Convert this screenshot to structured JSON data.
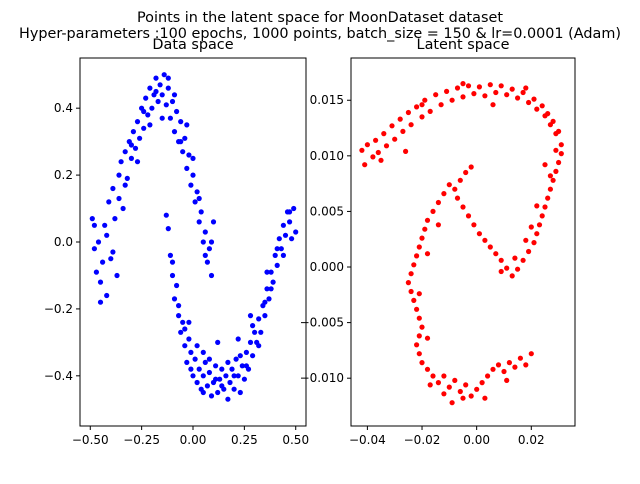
{
  "figure": {
    "title_line1": "Points in the latent space for MoonDataset dataset",
    "title_line2": "Hyper-parameters :100 epochs, 1000 points, batch_size = 150 & lr=0.0001 (Adam)"
  },
  "chart_data": [
    {
      "type": "scatter",
      "title": "Data space",
      "color": "#0000ff",
      "xlim": [
        -0.55,
        0.55
      ],
      "ylim": [
        -0.55,
        0.55
      ],
      "xticks": [
        -0.5,
        -0.25,
        0.0,
        0.25,
        0.5
      ],
      "xtick_labels": [
        "−0.50",
        "−0.25",
        "0.00",
        "0.25",
        "0.50"
      ],
      "yticks": [
        -0.4,
        -0.2,
        0.0,
        0.2,
        0.4
      ],
      "ytick_labels": [
        "−0.4",
        "−0.2",
        "0.0",
        "0.2",
        "0.4"
      ],
      "points": [
        [
          -0.49,
          0.07
        ],
        [
          -0.48,
          -0.02
        ],
        [
          -0.47,
          -0.09
        ],
        [
          -0.46,
          0.0
        ],
        [
          -0.45,
          -0.12
        ],
        [
          -0.44,
          -0.06
        ],
        [
          -0.43,
          0.05
        ],
        [
          -0.42,
          -0.16
        ],
        [
          -0.41,
          0.12
        ],
        [
          -0.4,
          -0.05
        ],
        [
          -0.39,
          0.16
        ],
        [
          -0.38,
          0.07
        ],
        [
          -0.37,
          -0.1
        ],
        [
          -0.36,
          0.2
        ],
        [
          -0.35,
          0.24
        ],
        [
          -0.34,
          0.1
        ],
        [
          -0.33,
          0.27
        ],
        [
          -0.32,
          0.19
        ],
        [
          -0.31,
          0.3
        ],
        [
          -0.3,
          0.25
        ],
        [
          -0.29,
          0.33
        ],
        [
          -0.28,
          0.28
        ],
        [
          -0.27,
          0.36
        ],
        [
          -0.26,
          0.31
        ],
        [
          -0.25,
          0.4
        ],
        [
          -0.24,
          0.34
        ],
        [
          -0.23,
          0.43
        ],
        [
          -0.22,
          0.38
        ],
        [
          -0.21,
          0.46
        ],
        [
          -0.2,
          0.4
        ],
        [
          -0.19,
          0.44
        ],
        [
          -0.18,
          0.49
        ],
        [
          -0.17,
          0.42
        ],
        [
          -0.16,
          0.47
        ],
        [
          -0.15,
          0.44
        ],
        [
          -0.14,
          0.5
        ],
        [
          -0.13,
          0.41
        ],
        [
          -0.12,
          0.46
        ],
        [
          -0.11,
          0.37
        ],
        [
          -0.1,
          0.42
        ],
        [
          -0.09,
          0.33
        ],
        [
          -0.08,
          0.39
        ],
        [
          -0.07,
          0.3
        ],
        [
          -0.06,
          0.36
        ],
        [
          -0.05,
          0.27
        ],
        [
          -0.04,
          0.31
        ],
        [
          -0.03,
          0.22
        ],
        [
          -0.02,
          0.26
        ],
        [
          -0.01,
          0.17
        ],
        [
          0.0,
          0.2
        ],
        [
          0.01,
          0.12
        ],
        [
          0.02,
          0.15
        ],
        [
          0.03,
          0.06
        ],
        [
          0.04,
          0.09
        ],
        [
          0.05,
          0.0
        ],
        [
          0.06,
          0.03
        ],
        [
          0.07,
          -0.06
        ],
        [
          0.08,
          -0.02
        ],
        [
          0.09,
          -0.1
        ],
        [
          0.1,
          0.06
        ],
        [
          -0.48,
          0.05
        ],
        [
          -0.45,
          -0.18
        ],
        [
          -0.42,
          0.02
        ],
        [
          -0.39,
          -0.03
        ],
        [
          -0.36,
          0.13
        ],
        [
          -0.33,
          0.17
        ],
        [
          -0.3,
          0.29
        ],
        [
          -0.27,
          0.24
        ],
        [
          -0.24,
          0.39
        ],
        [
          -0.21,
          0.35
        ],
        [
          -0.18,
          0.45
        ],
        [
          -0.15,
          0.37
        ],
        [
          -0.12,
          0.49
        ],
        [
          -0.09,
          0.44
        ],
        [
          -0.06,
          0.3
        ],
        [
          -0.03,
          0.35
        ],
        [
          0.0,
          0.25
        ],
        [
          0.03,
          0.13
        ],
        [
          0.06,
          -0.04
        ],
        [
          0.09,
          0.0
        ],
        [
          -0.12,
          0.04
        ],
        [
          -0.11,
          -0.04
        ],
        [
          -0.1,
          -0.1
        ],
        [
          -0.09,
          -0.17
        ],
        [
          -0.08,
          -0.13
        ],
        [
          -0.07,
          -0.22
        ],
        [
          -0.06,
          -0.27
        ],
        [
          -0.05,
          -0.24
        ],
        [
          -0.04,
          -0.31
        ],
        [
          -0.03,
          -0.36
        ],
        [
          -0.02,
          -0.29
        ],
        [
          -0.01,
          -0.33
        ],
        [
          0.0,
          -0.4
        ],
        [
          0.01,
          -0.35
        ],
        [
          0.02,
          -0.42
        ],
        [
          0.03,
          -0.38
        ],
        [
          0.04,
          -0.44
        ],
        [
          0.05,
          -0.4
        ],
        [
          0.06,
          -0.36
        ],
        [
          0.07,
          -0.43
        ],
        [
          0.08,
          -0.39
        ],
        [
          0.09,
          -0.46
        ],
        [
          0.1,
          -0.42
        ],
        [
          0.11,
          -0.37
        ],
        [
          0.12,
          -0.45
        ],
        [
          0.13,
          -0.41
        ],
        [
          0.14,
          -0.38
        ],
        [
          0.15,
          -0.44
        ],
        [
          0.16,
          -0.4
        ],
        [
          0.17,
          -0.47
        ],
        [
          0.18,
          -0.42
        ],
        [
          0.19,
          -0.38
        ],
        [
          0.2,
          -0.44
        ],
        [
          0.21,
          -0.35
        ],
        [
          0.22,
          -0.4
        ],
        [
          0.23,
          -0.45
        ],
        [
          0.24,
          -0.37
        ],
        [
          0.25,
          -0.41
        ],
        [
          0.26,
          -0.33
        ],
        [
          0.27,
          -0.38
        ],
        [
          0.28,
          -0.3
        ],
        [
          0.29,
          -0.34
        ],
        [
          0.3,
          -0.27
        ],
        [
          0.31,
          -0.3
        ],
        [
          0.32,
          -0.23
        ],
        [
          0.33,
          -0.27
        ],
        [
          0.34,
          -0.19
        ],
        [
          0.35,
          -0.22
        ],
        [
          0.36,
          -0.14
        ],
        [
          0.37,
          -0.17
        ],
        [
          0.38,
          -0.09
        ],
        [
          0.39,
          -0.12
        ],
        [
          0.4,
          -0.04
        ],
        [
          0.41,
          -0.07
        ],
        [
          0.42,
          0.01
        ],
        [
          0.43,
          -0.02
        ],
        [
          0.44,
          0.05
        ],
        [
          0.45,
          0.02
        ],
        [
          0.46,
          0.09
        ],
        [
          0.47,
          0.06
        ],
        [
          0.48,
          0.01
        ],
        [
          0.49,
          0.1
        ],
        [
          0.5,
          0.03
        ],
        [
          -0.13,
          0.08
        ],
        [
          -0.1,
          -0.06
        ],
        [
          -0.07,
          -0.19
        ],
        [
          -0.04,
          -0.26
        ],
        [
          -0.01,
          -0.38
        ],
        [
          0.02,
          -0.31
        ],
        [
          0.05,
          -0.45
        ],
        [
          0.08,
          -0.35
        ],
        [
          0.11,
          -0.41
        ],
        [
          0.14,
          -0.43
        ],
        [
          0.17,
          -0.36
        ],
        [
          0.2,
          -0.4
        ],
        [
          0.23,
          -0.34
        ],
        [
          0.26,
          -0.37
        ],
        [
          0.29,
          -0.25
        ],
        [
          0.32,
          -0.31
        ],
        [
          0.35,
          -0.18
        ],
        [
          0.38,
          -0.14
        ],
        [
          0.41,
          -0.02
        ],
        [
          0.44,
          -0.04
        ],
        [
          0.47,
          0.09
        ],
        [
          0.12,
          -0.3
        ],
        [
          0.05,
          -0.33
        ],
        [
          -0.02,
          -0.24
        ],
        [
          0.22,
          -0.29
        ],
        [
          0.28,
          -0.22
        ],
        [
          0.36,
          -0.09
        ]
      ]
    },
    {
      "type": "scatter",
      "title": "Latent space",
      "color": "#ff0000",
      "xlim": [
        -0.046,
        0.036
      ],
      "ylim": [
        -0.0143,
        0.0188
      ],
      "xticks": [
        -0.04,
        -0.02,
        0.0,
        0.02
      ],
      "xtick_labels": [
        "−0.04",
        "−0.02",
        "0.00",
        "0.02"
      ],
      "yticks": [
        -0.01,
        -0.005,
        0.0,
        0.005,
        0.01,
        0.015
      ],
      "ytick_labels": [
        "−0.010",
        "−0.005",
        "0.000",
        "0.005",
        "0.010",
        "0.015"
      ],
      "points": [
        [
          -0.042,
          0.0105
        ],
        [
          -0.041,
          0.0092
        ],
        [
          -0.04,
          0.011
        ],
        [
          -0.038,
          0.0099
        ],
        [
          -0.037,
          0.0114
        ],
        [
          -0.036,
          0.0103
        ],
        [
          -0.034,
          0.012
        ],
        [
          -0.033,
          0.0109
        ],
        [
          -0.031,
          0.0127
        ],
        [
          -0.03,
          0.0115
        ],
        [
          -0.028,
          0.0133
        ],
        [
          -0.027,
          0.0122
        ],
        [
          -0.025,
          0.0139
        ],
        [
          -0.024,
          0.0128
        ],
        [
          -0.022,
          0.0144
        ],
        [
          -0.02,
          0.0135
        ],
        [
          -0.019,
          0.015
        ],
        [
          -0.017,
          0.014
        ],
        [
          -0.015,
          0.0155
        ],
        [
          -0.013,
          0.0146
        ],
        [
          -0.011,
          0.0158
        ],
        [
          -0.009,
          0.015
        ],
        [
          -0.007,
          0.0161
        ],
        [
          -0.005,
          0.0153
        ],
        [
          -0.003,
          0.0163
        ],
        [
          -0.001,
          0.0156
        ],
        [
          0.001,
          0.0162
        ],
        [
          0.003,
          0.0154
        ],
        [
          0.005,
          0.0164
        ],
        [
          0.007,
          0.0157
        ],
        [
          0.009,
          0.0163
        ],
        [
          0.011,
          0.0155
        ],
        [
          0.013,
          0.016
        ],
        [
          0.015,
          0.0152
        ],
        [
          0.017,
          0.0157
        ],
        [
          0.019,
          0.0148
        ],
        [
          0.021,
          0.0151
        ],
        [
          0.022,
          0.0142
        ],
        [
          0.024,
          0.0145
        ],
        [
          0.025,
          0.0136
        ],
        [
          0.026,
          0.0138
        ],
        [
          0.027,
          0.0128
        ],
        [
          0.028,
          0.0131
        ],
        [
          0.029,
          0.012
        ],
        [
          0.03,
          0.0122
        ],
        [
          0.031,
          0.011
        ],
        [
          0.031,
          0.0102
        ],
        [
          0.03,
          0.0094
        ],
        [
          0.029,
          0.0086
        ],
        [
          0.028,
          0.0078
        ],
        [
          0.027,
          0.007
        ],
        [
          0.026,
          0.0062
        ],
        [
          0.025,
          0.0054
        ],
        [
          0.024,
          0.0046
        ],
        [
          0.023,
          0.0038
        ],
        [
          0.022,
          0.003
        ],
        [
          0.021,
          0.0022
        ],
        [
          0.019,
          0.0014
        ],
        [
          0.017,
          0.0006
        ],
        [
          0.015,
          -0.0002
        ],
        [
          0.013,
          -0.0008
        ],
        [
          0.011,
          -0.0001
        ],
        [
          0.009,
          0.0006
        ],
        [
          0.007,
          0.0012
        ],
        [
          0.005,
          0.0018
        ],
        [
          0.003,
          0.0024
        ],
        [
          0.001,
          0.003
        ],
        [
          -0.001,
          0.0038
        ],
        [
          -0.003,
          0.0046
        ],
        [
          -0.005,
          0.0054
        ],
        [
          -0.007,
          0.0062
        ],
        [
          -0.008,
          0.007
        ],
        [
          -0.006,
          0.0078
        ],
        [
          -0.004,
          0.0085
        ],
        [
          -0.002,
          0.009
        ],
        [
          -0.01,
          0.0074
        ],
        [
          -0.012,
          0.0066
        ],
        [
          -0.014,
          0.0058
        ],
        [
          -0.016,
          0.005
        ],
        [
          -0.018,
          0.0042
        ],
        [
          -0.019,
          0.0034
        ],
        [
          -0.02,
          0.0026
        ],
        [
          -0.021,
          0.0018
        ],
        [
          -0.022,
          0.001
        ],
        [
          -0.023,
          0.0002
        ],
        [
          -0.024,
          -0.0006
        ],
        [
          -0.025,
          -0.0014
        ],
        [
          -0.024,
          -0.0022
        ],
        [
          -0.023,
          -0.003
        ],
        [
          -0.022,
          -0.0038
        ],
        [
          -0.021,
          -0.0046
        ],
        [
          -0.02,
          -0.0054
        ],
        [
          -0.021,
          -0.0062
        ],
        [
          -0.022,
          -0.007
        ],
        [
          -0.021,
          -0.0078
        ],
        [
          -0.02,
          -0.0086
        ],
        [
          -0.018,
          -0.0092
        ],
        [
          -0.016,
          -0.0098
        ],
        [
          -0.014,
          -0.0104
        ],
        [
          -0.012,
          -0.0098
        ],
        [
          -0.01,
          -0.0108
        ],
        [
          -0.008,
          -0.0102
        ],
        [
          -0.006,
          -0.0112
        ],
        [
          -0.004,
          -0.0106
        ],
        [
          -0.002,
          -0.0116
        ],
        [
          0.0,
          -0.011
        ],
        [
          0.002,
          -0.0104
        ],
        [
          0.004,
          -0.0098
        ],
        [
          0.006,
          -0.0092
        ],
        [
          0.008,
          -0.0088
        ],
        [
          0.01,
          -0.0094
        ],
        [
          0.012,
          -0.0086
        ],
        [
          0.014,
          -0.009
        ],
        [
          0.016,
          -0.0082
        ],
        [
          0.018,
          -0.0088
        ],
        [
          0.02,
          -0.0078
        ],
        [
          -0.005,
          -0.0118
        ],
        [
          -0.012,
          -0.0114
        ],
        [
          -0.017,
          -0.0106
        ],
        [
          -0.009,
          -0.0122
        ],
        [
          0.003,
          -0.0118
        ],
        [
          0.011,
          -0.0102
        ],
        [
          -0.026,
          0.0104
        ],
        [
          -0.035,
          0.0096
        ],
        [
          -0.02,
          0.0146
        ],
        [
          -0.005,
          0.0165
        ],
        [
          0.006,
          0.0146
        ],
        [
          0.018,
          0.0161
        ],
        [
          0.029,
          0.0105
        ],
        [
          0.025,
          0.0092
        ],
        [
          0.027,
          0.0082
        ],
        [
          0.022,
          0.0055
        ],
        [
          0.02,
          0.0036
        ],
        [
          0.018,
          0.0024
        ],
        [
          0.014,
          0.0008
        ],
        [
          0.009,
          -0.0004
        ],
        [
          -0.014,
          0.0038
        ],
        [
          -0.018,
          0.0012
        ],
        [
          -0.021,
          -0.0024
        ],
        [
          -0.018,
          -0.0064
        ]
      ]
    }
  ]
}
